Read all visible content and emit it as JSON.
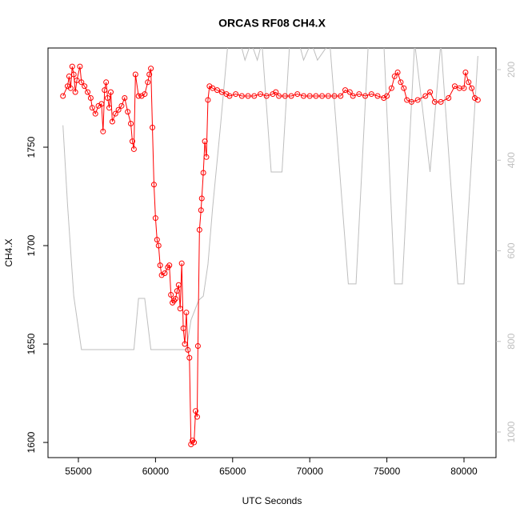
{
  "chart_data": {
    "type": "line",
    "title": "ORCAS RF08 CH4.X",
    "xlabel": "UTC Seconds",
    "ylabel": "CH4.X",
    "xlim": [
      53030,
      82075
    ],
    "xticks": [
      55000,
      60000,
      65000,
      70000,
      75000,
      80000
    ],
    "ylim": [
      1592.3,
      1800.4
    ],
    "yticks": [
      1600,
      1650,
      1700,
      1750
    ],
    "y2lim": [
      1056.5,
      152.3
    ],
    "y2ticks": [
      200,
      400,
      600,
      800,
      1000
    ],
    "series": [
      {
        "axis": "y2",
        "color": "#bebebe",
        "markers": false,
        "x": [
          54000,
          54300,
          54700,
          55200,
          58600,
          58900,
          59300,
          59700,
          62000,
          62300,
          62800,
          63100,
          63400,
          63700,
          64200,
          64700,
          65500,
          65800,
          66200,
          66600,
          66900,
          67500,
          68200,
          68700,
          69300,
          69600,
          70100,
          70500,
          71300,
          72500,
          73000,
          73800,
          74800,
          75500,
          76000,
          76800,
          77800,
          78500,
          79600,
          80000,
          80900
        ],
        "values": [
          323,
          500,
          700,
          818,
          818,
          705,
          705,
          818,
          818,
          753,
          709,
          700,
          630,
          506,
          329,
          140,
          140,
          179,
          140,
          179,
          140,
          426,
          426,
          140,
          140,
          179,
          140,
          179,
          140,
          673,
          673,
          140,
          140,
          673,
          673,
          140,
          426,
          140,
          673,
          673,
          170
        ]
      },
      {
        "axis": "y",
        "color": "#ff0000",
        "markers": true,
        "x": [
          54000,
          54300,
          54400,
          54500,
          54600,
          54700,
          54800,
          54900,
          55100,
          55200,
          55400,
          55600,
          55800,
          55900,
          56100,
          56300,
          56500,
          56600,
          56700,
          56800,
          56900,
          57000,
          57100,
          57200,
          57400,
          57600,
          57800,
          58000,
          58200,
          58400,
          58500,
          58600,
          58700,
          58900,
          59100,
          59300,
          59500,
          59600,
          59700,
          59800,
          59900,
          60000,
          60100,
          60200,
          60300,
          60400,
          60600,
          60800,
          60900,
          61000,
          61100,
          61200,
          61300,
          61400,
          61500,
          61600,
          61700,
          61800,
          61900,
          62000,
          62100,
          62200,
          62300,
          62400,
          62500,
          62600,
          62700,
          62750,
          62850,
          62950,
          63000,
          63100,
          63200,
          63300,
          63400,
          63500,
          63700,
          64000,
          64300,
          64600,
          64800,
          65200,
          65600,
          66000,
          66400,
          66800,
          67200,
          67600,
          67800,
          68000,
          68400,
          68800,
          69200,
          69600,
          70000,
          70400,
          70800,
          71200,
          71600,
          72000,
          72300,
          72600,
          72800,
          73200,
          73600,
          74000,
          74400,
          74800,
          75000,
          75300,
          75500,
          75700,
          75900,
          76100,
          76300,
          76600,
          77000,
          77500,
          77800,
          78100,
          78500,
          79000,
          79400,
          79700,
          80000,
          80100,
          80300,
          80500,
          80700,
          80900
        ],
        "values": [
          1776,
          1781,
          1786,
          1780,
          1791,
          1787,
          1778,
          1784,
          1791,
          1783,
          1781,
          1778,
          1775,
          1770,
          1767,
          1771,
          1772,
          1758,
          1779,
          1783,
          1775,
          1770,
          1778,
          1763,
          1767,
          1769,
          1771,
          1775,
          1768,
          1762,
          1753,
          1749,
          1787,
          1776,
          1776,
          1777,
          1783,
          1787,
          1790,
          1760,
          1731,
          1714,
          1703,
          1700,
          1690,
          1685,
          1686,
          1689,
          1690,
          1675,
          1671,
          1672,
          1673,
          1677,
          1680,
          1668,
          1691,
          1658,
          1650,
          1666,
          1647,
          1643,
          1599,
          1601,
          1600,
          1616,
          1613,
          1649,
          1708,
          1718,
          1724,
          1737,
          1753,
          1745,
          1774,
          1781,
          1780,
          1779,
          1778,
          1777,
          1776,
          1777,
          1776,
          1776,
          1776,
          1777,
          1776,
          1777,
          1778,
          1776,
          1776,
          1776,
          1777,
          1776,
          1776,
          1776,
          1776,
          1776,
          1776,
          1776,
          1779,
          1778,
          1776,
          1777,
          1776,
          1777,
          1776,
          1775,
          1776,
          1780,
          1786,
          1788,
          1783,
          1780,
          1774,
          1773,
          1774,
          1776,
          1778,
          1773,
          1773,
          1775,
          1781,
          1780,
          1780,
          1788,
          1783,
          1780,
          1775,
          1774
        ]
      }
    ]
  }
}
